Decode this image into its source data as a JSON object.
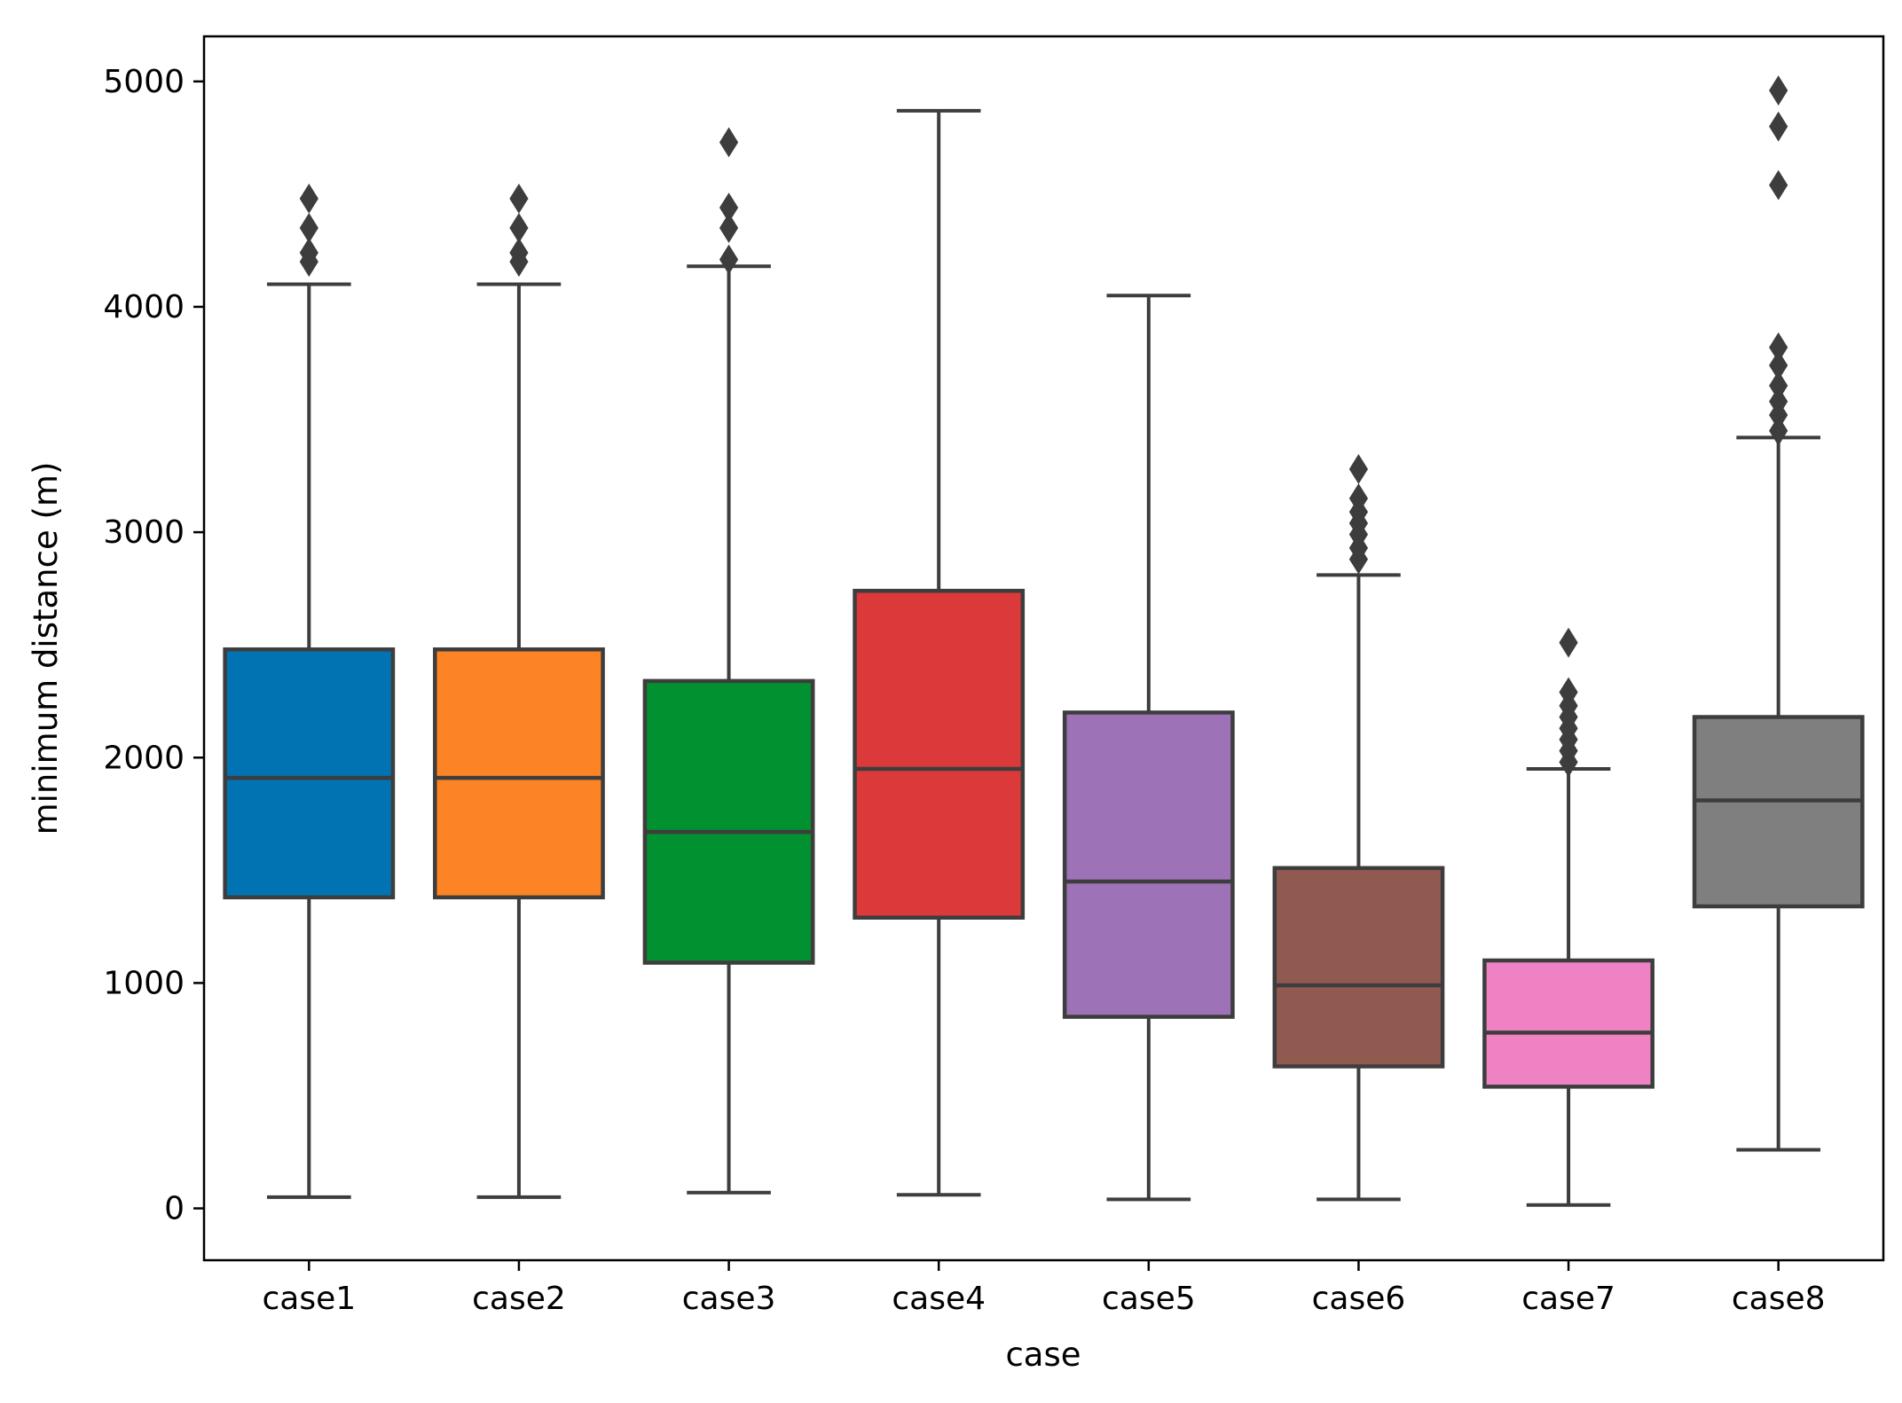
{
  "chart_data": {
    "type": "boxplot",
    "title": "",
    "xlabel": "case",
    "ylabel": "minimum distance (m)",
    "ylim": [
      -230,
      5200
    ],
    "yticks": [
      0,
      1000,
      2000,
      3000,
      4000,
      5000
    ],
    "categories": [
      "case1",
      "case2",
      "case3",
      "case4",
      "case5",
      "case6",
      "case7",
      "case8"
    ],
    "colors": [
      "#0173b2",
      "#fd8424",
      "#029130",
      "#dc393b",
      "#9d72b6",
      "#905a51",
      "#ee82c2",
      "#7f7f7f"
    ],
    "edge_color": "#3d3d3d",
    "boxes": [
      {
        "name": "case1",
        "whislo": 50,
        "q1": 1380,
        "median": 1910,
        "q3": 2480,
        "whishi": 4100,
        "fliers": [
          4200,
          4240,
          4350,
          4480
        ]
      },
      {
        "name": "case2",
        "whislo": 50,
        "q1": 1380,
        "median": 1910,
        "q3": 2480,
        "whishi": 4100,
        "fliers": [
          4200,
          4240,
          4350,
          4480
        ]
      },
      {
        "name": "case3",
        "whislo": 70,
        "q1": 1090,
        "median": 1670,
        "q3": 2340,
        "whishi": 4180,
        "fliers": [
          4210,
          4350,
          4440,
          4730
        ]
      },
      {
        "name": "case4",
        "whislo": 60,
        "q1": 1290,
        "median": 1950,
        "q3": 2740,
        "whishi": 4870,
        "fliers": []
      },
      {
        "name": "case5",
        "whislo": 40,
        "q1": 850,
        "median": 1450,
        "q3": 2200,
        "whishi": 4050,
        "fliers": []
      },
      {
        "name": "case6",
        "whislo": 40,
        "q1": 630,
        "median": 990,
        "q3": 1510,
        "whishi": 2810,
        "fliers": [
          2880,
          2930,
          2990,
          3040,
          3090,
          3150,
          3280
        ]
      },
      {
        "name": "case7",
        "whislo": 15,
        "q1": 540,
        "median": 780,
        "q3": 1100,
        "whishi": 1950,
        "fliers": [
          1980,
          2030,
          2080,
          2130,
          2180,
          2230,
          2290,
          2510
        ]
      },
      {
        "name": "case8",
        "whislo": 260,
        "q1": 1340,
        "median": 1810,
        "q3": 2180,
        "whishi": 3420,
        "fliers": [
          3450,
          3520,
          3580,
          3650,
          3740,
          3820,
          4540,
          4800,
          4960
        ]
      }
    ]
  }
}
